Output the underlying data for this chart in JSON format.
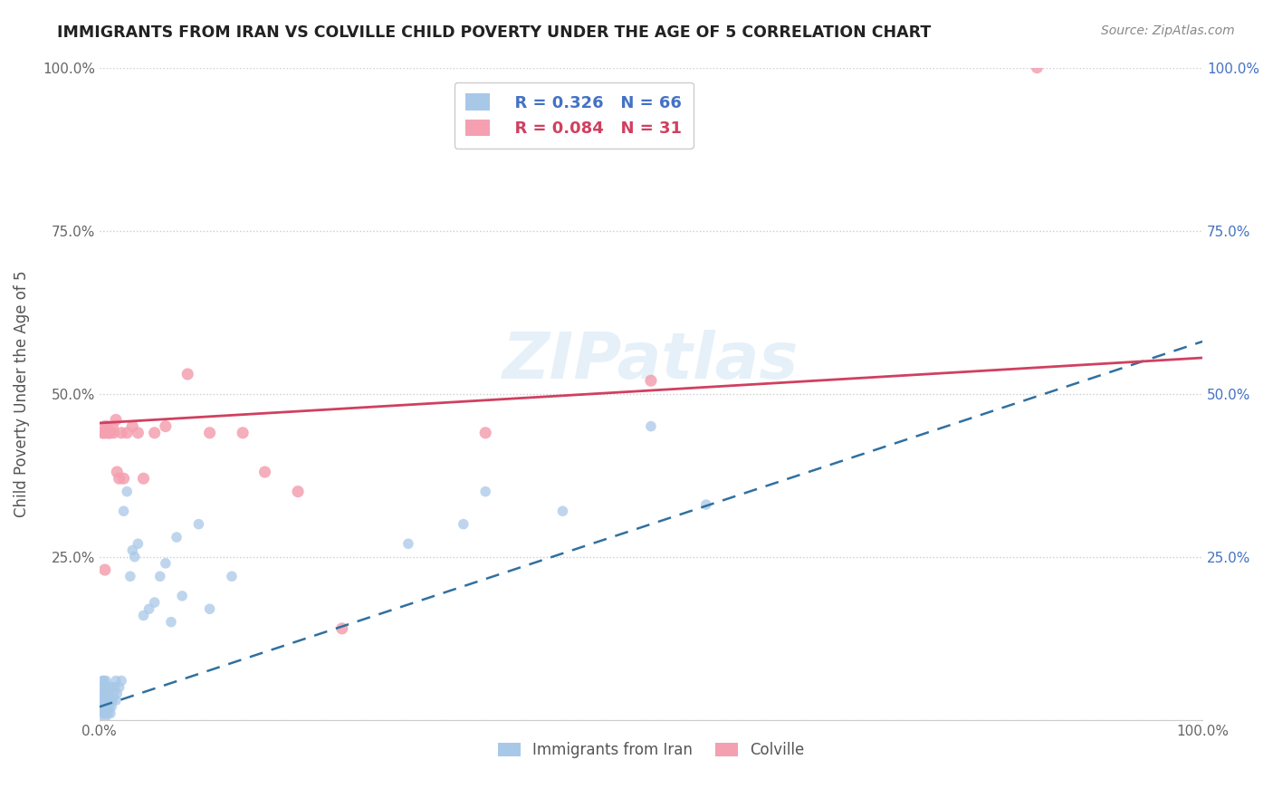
{
  "title": "IMMIGRANTS FROM IRAN VS COLVILLE CHILD POVERTY UNDER THE AGE OF 5 CORRELATION CHART",
  "source": "Source: ZipAtlas.com",
  "ylabel": "Child Poverty Under the Age of 5",
  "xlim": [
    0,
    1
  ],
  "ylim": [
    0,
    1
  ],
  "xticks": [
    0.0,
    0.25,
    0.5,
    0.75,
    1.0
  ],
  "xticklabels": [
    "0.0%",
    "",
    "",
    "",
    "100.0%"
  ],
  "yticks_left": [
    0.0,
    0.25,
    0.5,
    0.75,
    1.0
  ],
  "yticklabels_left": [
    "",
    "25.0%",
    "50.0%",
    "75.0%",
    "100.0%"
  ],
  "yticks_right": [
    0.0,
    0.25,
    0.5,
    0.75,
    1.0
  ],
  "yticklabels_right": [
    "",
    "25.0%",
    "50.0%",
    "75.0%",
    "100.0%"
  ],
  "blue_color": "#a8c8e8",
  "pink_color": "#f4a0b0",
  "blue_label": "Immigrants from Iran",
  "pink_label": "Colville",
  "legend_R_blue": "R = 0.326",
  "legend_N_blue": "N = 66",
  "legend_R_pink": "R = 0.084",
  "legend_N_pink": "N = 31",
  "watermark": "ZIPatlas",
  "blue_line_color": "#3070a0",
  "pink_line_color": "#d04060",
  "blue_line_y_start": 0.02,
  "blue_line_y_end": 0.58,
  "pink_line_y_start": 0.455,
  "pink_line_y_end": 0.555,
  "blue_scatter_x": [
    0.002,
    0.002,
    0.003,
    0.003,
    0.003,
    0.003,
    0.003,
    0.004,
    0.004,
    0.004,
    0.004,
    0.004,
    0.005,
    0.005,
    0.005,
    0.005,
    0.005,
    0.005,
    0.006,
    0.006,
    0.006,
    0.006,
    0.007,
    0.007,
    0.007,
    0.008,
    0.008,
    0.008,
    0.009,
    0.009,
    0.01,
    0.01,
    0.01,
    0.011,
    0.012,
    0.012,
    0.013,
    0.014,
    0.015,
    0.015,
    0.016,
    0.018,
    0.02,
    0.022,
    0.025,
    0.028,
    0.03,
    0.032,
    0.035,
    0.04,
    0.045,
    0.05,
    0.055,
    0.06,
    0.065,
    0.07,
    0.075,
    0.09,
    0.1,
    0.12,
    0.28,
    0.33,
    0.35,
    0.42,
    0.5,
    0.55
  ],
  "blue_scatter_y": [
    0.02,
    0.04,
    0.01,
    0.02,
    0.03,
    0.05,
    0.06,
    0.01,
    0.02,
    0.03,
    0.04,
    0.06,
    0.0,
    0.01,
    0.02,
    0.03,
    0.04,
    0.05,
    0.01,
    0.02,
    0.04,
    0.06,
    0.02,
    0.03,
    0.05,
    0.01,
    0.03,
    0.04,
    0.02,
    0.05,
    0.01,
    0.03,
    0.05,
    0.02,
    0.03,
    0.05,
    0.04,
    0.05,
    0.03,
    0.06,
    0.04,
    0.05,
    0.06,
    0.32,
    0.35,
    0.22,
    0.26,
    0.25,
    0.27,
    0.16,
    0.17,
    0.18,
    0.22,
    0.24,
    0.15,
    0.28,
    0.19,
    0.3,
    0.17,
    0.22,
    0.27,
    0.3,
    0.35,
    0.32,
    0.45,
    0.33
  ],
  "pink_scatter_x": [
    0.003,
    0.004,
    0.005,
    0.005,
    0.006,
    0.007,
    0.008,
    0.009,
    0.01,
    0.012,
    0.013,
    0.015,
    0.016,
    0.018,
    0.02,
    0.022,
    0.025,
    0.03,
    0.035,
    0.04,
    0.05,
    0.06,
    0.08,
    0.1,
    0.13,
    0.15,
    0.18,
    0.22,
    0.35,
    0.5,
    0.85
  ],
  "pink_scatter_y": [
    0.44,
    0.44,
    0.45,
    0.23,
    0.44,
    0.45,
    0.44,
    0.44,
    0.44,
    0.45,
    0.44,
    0.46,
    0.38,
    0.37,
    0.44,
    0.37,
    0.44,
    0.45,
    0.44,
    0.37,
    0.44,
    0.45,
    0.53,
    0.44,
    0.44,
    0.38,
    0.35,
    0.14,
    0.44,
    0.52,
    1.0
  ],
  "background_color": "#ffffff",
  "grid_color": "#cccccc"
}
